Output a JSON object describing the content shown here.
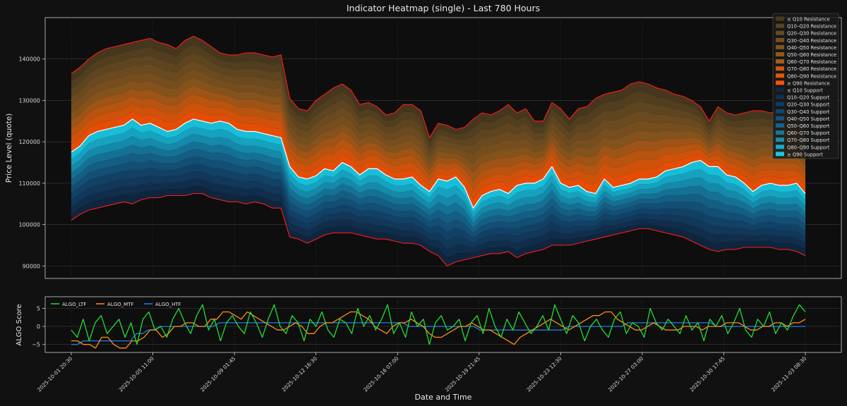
{
  "chart_data": [
    {
      "type": "heatmap",
      "title": "Indicator Heatmap (single) - Last 780 Hours",
      "xlabel": "",
      "ylabel": "Price Level (quote)",
      "ylim": [
        87000,
        150000
      ],
      "yticks": [
        90000,
        100000,
        110000,
        120000,
        130000,
        140000
      ],
      "ytick_labels": [
        "90000",
        "100000",
        "110000",
        "120000",
        "130000",
        "140000"
      ],
      "grid": true,
      "legend_position": "top-right",
      "legend": [
        {
          "label": "≤ Q10 Resistance",
          "color": "#4a3a1e"
        },
        {
          "label": "Q10–Q20 Resistance",
          "color": "#574221"
        },
        {
          "label": "Q20–Q30 Resistance",
          "color": "#654a22"
        },
        {
          "label": "Q30–Q40 Resistance",
          "color": "#724f22"
        },
        {
          "label": "Q40–Q50 Resistance",
          "color": "#7f5420"
        },
        {
          "label": "Q50–Q60 Resistance",
          "color": "#8e581d"
        },
        {
          "label": "Q60–Q70 Resistance",
          "color": "#a95a17"
        },
        {
          "label": "Q70–Q80 Resistance",
          "color": "#c65a10"
        },
        {
          "label": "Q80–Q90 Resistance",
          "color": "#e0580a"
        },
        {
          "label": "≥ Q90 Resistance",
          "color": "#f75306"
        },
        {
          "label": "≤ Q10 Support",
          "color": "#0f2740"
        },
        {
          "label": "Q10–Q20 Support",
          "color": "#113050"
        },
        {
          "label": "Q20–Q30 Support",
          "color": "#123a5e"
        },
        {
          "label": "Q30–Q40 Support",
          "color": "#13456c"
        },
        {
          "label": "Q40–Q50 Support",
          "color": "#14527a"
        },
        {
          "label": "Q50–Q60 Support",
          "color": "#15628a"
        },
        {
          "label": "Q60–Q70 Support",
          "color": "#16779c"
        },
        {
          "label": "Q70–Q80 Support",
          "color": "#1690b2"
        },
        {
          "label": "Q80–Q90 Support",
          "color": "#17abc9"
        },
        {
          "label": "≥ Q90 Support",
          "color": "#19c8e3"
        }
      ],
      "series": [
        {
          "name": "price",
          "color": "#ffffff",
          "values": [
            117500,
            119000,
            121500,
            122500,
            123000,
            123500,
            124000,
            125500,
            124000,
            124500,
            123500,
            122500,
            123000,
            124500,
            125500,
            125000,
            124500,
            125000,
            124500,
            123000,
            122500,
            122500,
            122000,
            121500,
            121000,
            114000,
            111500,
            111000,
            111800,
            113500,
            113000,
            115000,
            114000,
            112000,
            113500,
            113500,
            112000,
            111000,
            111000,
            111500,
            109500,
            108000,
            111000,
            110500,
            111500,
            109000,
            104000,
            107000,
            108000,
            108500,
            107500,
            109500,
            110000,
            110000,
            111000,
            114000,
            110000,
            109000,
            109500,
            108000,
            107500,
            111000,
            109000,
            109500,
            110000,
            111000,
            111000,
            111500,
            113000,
            113500,
            114000,
            115000,
            115500,
            114000,
            114000,
            112000,
            111500,
            110000,
            108000,
            109500,
            110000,
            109500,
            109500,
            110000,
            107500
          ]
        },
        {
          "name": "upper band",
          "color": "#ff1a1a",
          "values": [
            136500,
            138000,
            140000,
            141500,
            142500,
            143000,
            143500,
            144000,
            144500,
            145000,
            144000,
            143500,
            142500,
            144500,
            145500,
            144500,
            143000,
            141500,
            141000,
            141000,
            141500,
            141500,
            141000,
            140500,
            141000,
            130500,
            128000,
            127500,
            130000,
            131500,
            133000,
            134000,
            132500,
            129000,
            129500,
            128500,
            126500,
            127000,
            129000,
            129000,
            127500,
            121000,
            124500,
            124000,
            123000,
            123500,
            125500,
            127000,
            126500,
            127500,
            129000,
            127000,
            128000,
            125000,
            125000,
            129500,
            128000,
            125500,
            128000,
            128500,
            130500,
            131500,
            132000,
            132500,
            134000,
            134500,
            134000,
            133000,
            132500,
            131500,
            131000,
            130000,
            128500,
            125000,
            128500,
            127000,
            126500,
            127000,
            127500,
            127500,
            127000,
            127500,
            127500,
            126000,
            124500
          ]
        },
        {
          "name": "lower band",
          "color": "#ff1a1a",
          "values": [
            101000,
            102500,
            103500,
            104000,
            104500,
            105000,
            105500,
            105000,
            106000,
            106500,
            106500,
            107000,
            107000,
            107000,
            107500,
            107500,
            106500,
            106000,
            105500,
            105500,
            105000,
            105500,
            105000,
            104000,
            104000,
            97000,
            96500,
            95500,
            96500,
            97500,
            98000,
            98000,
            98000,
            97500,
            97000,
            96500,
            96500,
            96000,
            95500,
            95500,
            95000,
            93500,
            92500,
            90000,
            91000,
            91500,
            92000,
            92500,
            93000,
            93000,
            93500,
            92000,
            93000,
            93500,
            94000,
            95000,
            95000,
            95000,
            95500,
            96000,
            96500,
            97000,
            97500,
            98000,
            98500,
            99000,
            99000,
            98500,
            98000,
            97500,
            97000,
            96000,
            95000,
            94000,
            93500,
            94000,
            94000,
            94500,
            94500,
            94500,
            94500,
            94000,
            94000,
            93500,
            92500
          ]
        }
      ]
    },
    {
      "type": "line",
      "title": "",
      "xlabel": "Date and Time",
      "ylabel": "ALGO Score",
      "ylim": [
        -7.2,
        8.2
      ],
      "yticks": [
        -5,
        0,
        5
      ],
      "ytick_labels": [
        "−5",
        "0",
        "5"
      ],
      "x_tick_labels": [
        "2025-10-01 20:30",
        "2025-10-05 11:00",
        "2025-10-09 01:45",
        "2025-10-12 16:30",
        "2025-10-16 07:00",
        "2025-10-19 21:45",
        "2025-10-23 12:30",
        "2025-10-27 03:00",
        "2025-10-30 17:45",
        "2025-11-03 08:30"
      ],
      "grid": true,
      "legend_position": "top-left",
      "series": [
        {
          "name": "ALGO_LTF",
          "color": "#22dd33",
          "values": [
            -1,
            -3,
            2,
            -4,
            1,
            3,
            -2,
            0,
            2,
            -3,
            1,
            -5,
            2,
            4,
            -1,
            0,
            -3,
            2,
            5,
            1,
            -2,
            3,
            6,
            -1,
            2,
            -4,
            1,
            3,
            0,
            -2,
            4,
            1,
            -3,
            2,
            6,
            0,
            -2,
            3,
            1,
            -4,
            2,
            0,
            4,
            -1,
            -3,
            2,
            1,
            -2,
            5,
            0,
            3,
            -1,
            2,
            6,
            -2,
            1,
            -3,
            4,
            0,
            2,
            -5,
            1,
            3,
            -1,
            0,
            2,
            -4,
            1,
            3,
            -2,
            5,
            0,
            -3,
            2,
            -1,
            4,
            1,
            -2,
            0,
            3,
            -1,
            6,
            2,
            -2,
            3,
            1,
            -4,
            0,
            2,
            -1,
            -3,
            2,
            4,
            -2,
            1,
            0,
            -3,
            5,
            1,
            -1,
            2,
            0,
            -2,
            3,
            -1,
            1,
            -4,
            2,
            0,
            3,
            -2,
            1,
            5,
            -1,
            -3,
            2,
            0,
            4,
            -2,
            1,
            -1,
            3,
            6,
            4
          ]
        },
        {
          "name": "ALGO_MTF",
          "color": "#ff8c1a",
          "values": [
            -4,
            -4,
            -5,
            -5,
            -6,
            -3,
            -3,
            -5,
            -6,
            -6,
            -4,
            -4,
            -3,
            -1,
            -1,
            -3,
            -2,
            0,
            0,
            1,
            1,
            0,
            0,
            2,
            2,
            4,
            4,
            3,
            2,
            4,
            3,
            2,
            1,
            0,
            -1,
            -1,
            0,
            1,
            0,
            -2,
            -2,
            0,
            1,
            1,
            2,
            3,
            4,
            4,
            3,
            2,
            0,
            -1,
            -2,
            0,
            1,
            1,
            2,
            1,
            0,
            -2,
            -3,
            -3,
            -2,
            -1,
            0,
            0,
            1,
            0,
            -1,
            -1,
            -2,
            -3,
            -4,
            -5,
            -3,
            -2,
            -1,
            0,
            1,
            2,
            1,
            0,
            -1,
            0,
            1,
            2,
            3,
            3,
            4,
            4,
            2,
            1,
            0,
            -1,
            -1,
            0,
            1,
            0,
            -1,
            -1,
            -1,
            0,
            0,
            0,
            -1,
            0,
            0,
            0,
            1,
            1,
            1,
            0,
            -1,
            -1,
            0,
            0,
            1,
            1,
            0,
            1,
            1,
            2
          ]
        },
        {
          "name": "ALGO_HTF",
          "color": "#1e7fe6",
          "values": [
            -5,
            -5,
            -4,
            -4,
            -4,
            -4,
            -4,
            -4,
            -4,
            -4,
            -4,
            -2,
            -2,
            -1,
            -1,
            0,
            0,
            0,
            0,
            0,
            0,
            0,
            0,
            0,
            0,
            1,
            1,
            1,
            1,
            1,
            1,
            1,
            1,
            1,
            1,
            1,
            1,
            1,
            1,
            1,
            1,
            1,
            1,
            1,
            1,
            1,
            1,
            1,
            1,
            1,
            1,
            1,
            1,
            1,
            1,
            1,
            1,
            0,
            0,
            0,
            0,
            0,
            0,
            0,
            0,
            0,
            0,
            0,
            0,
            -1,
            -1,
            -1,
            -1,
            -1,
            -1,
            -1,
            -1,
            -1,
            -1,
            -1,
            -1,
            -1,
            -1,
            -1,
            0,
            0,
            0,
            0,
            0,
            0,
            0,
            0,
            0,
            0,
            1,
            1,
            1,
            1,
            1,
            1,
            1,
            1,
            1,
            1,
            1,
            1,
            1,
            1,
            1,
            0,
            0,
            0,
            0,
            0,
            0,
            0,
            0,
            0,
            0,
            0,
            0,
            0,
            0,
            0,
            0
          ]
        }
      ]
    }
  ]
}
